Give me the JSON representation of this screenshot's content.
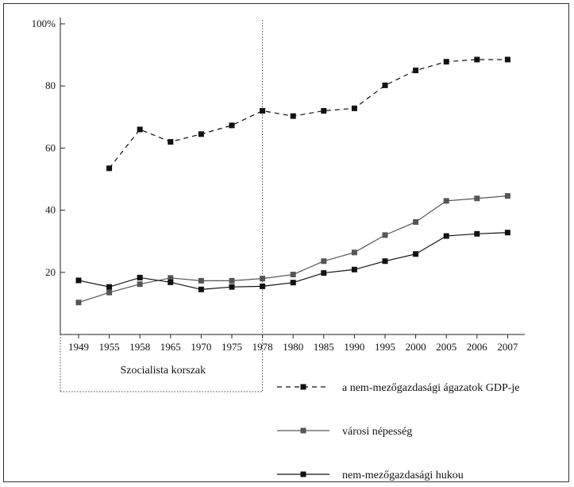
{
  "chart_data": {
    "type": "line",
    "categories": [
      "1949",
      "1955",
      "1958",
      "1965",
      "1970",
      "1975",
      "1978",
      "1980",
      "1985",
      "1990",
      "1995",
      "2000",
      "2005",
      "2006",
      "2007"
    ],
    "ylim": [
      0,
      100
    ],
    "yticks": [
      "20",
      "40",
      "60",
      "80",
      "100%"
    ],
    "grid": false,
    "legend_position": "bottom-right",
    "period_label": "Szocialista korszak",
    "period_end": "1978",
    "series": [
      {
        "name": "a nem-mezőgazdasági ágazatok GDP-je",
        "style": "dashed",
        "color": "#111111",
        "values": [
          null,
          53.5,
          66,
          62,
          64.5,
          67.3,
          72,
          70.3,
          72,
          72.8,
          80.2,
          85,
          87.8,
          88.5,
          88.5
        ]
      },
      {
        "name": "városi népesség",
        "style": "solid",
        "color": "#555555",
        "values": [
          10.3,
          13.5,
          16.2,
          18.2,
          17.3,
          17.3,
          18,
          19.3,
          23.6,
          26.4,
          32,
          36.2,
          43,
          43.8,
          44.6
        ]
      },
      {
        "name": "nem-mezőgazdasági hukou",
        "style": "solid",
        "color": "#111111",
        "values": [
          17.4,
          15.3,
          18.3,
          16.8,
          14.5,
          15.3,
          15.5,
          16.7,
          19.8,
          20.9,
          23.6,
          25.9,
          31.7,
          32.4,
          32.8
        ]
      }
    ]
  }
}
